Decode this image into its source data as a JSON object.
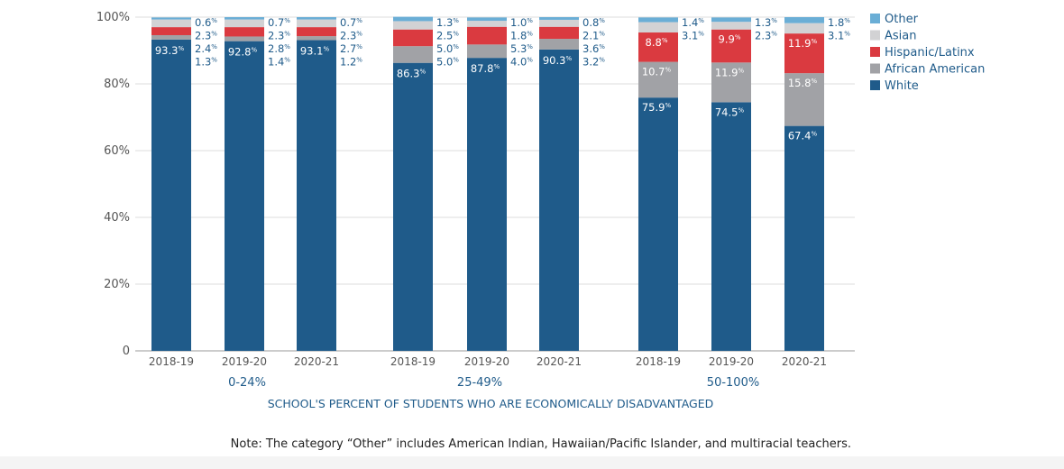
{
  "chart_data": {
    "type": "stacked-bar",
    "y_ticks": [
      "100%",
      "80%",
      "60%",
      "40%",
      "20%",
      "0"
    ],
    "ylim": [
      0,
      100
    ],
    "grid": true,
    "xlabel": "SCHOOL'S PERCENT OF STUDENTS WHO ARE ECONOMICALLY DISADVANTAGED",
    "legend_position": "top-right",
    "note": "Note: The category “Other” includes American Indian, Hawaiian/Pacific Islander, and multiracial teachers.",
    "series_order": [
      "White",
      "African American",
      "Hispanic/Latinx",
      "Asian",
      "Other"
    ],
    "legend": [
      {
        "name": "Other",
        "color": "#6aaed6"
      },
      {
        "name": "Asian",
        "color": "#d2d2d4"
      },
      {
        "name": "Hispanic/Latinx",
        "color": "#da3a40"
      },
      {
        "name": "African American",
        "color": "#a1a2a6"
      },
      {
        "name": "White",
        "color": "#1f5b8a"
      }
    ],
    "groups": [
      {
        "name": "0-24%",
        "bars": [
          {
            "year": "2018-19",
            "values": {
              "White": 93.3,
              "African American": 1.3,
              "Hispanic/Latinx": 2.4,
              "Asian": 2.3,
              "Other": 0.6
            }
          },
          {
            "year": "2019-20",
            "values": {
              "White": 92.8,
              "African American": 1.4,
              "Hispanic/Latinx": 2.8,
              "Asian": 2.3,
              "Other": 0.7
            }
          },
          {
            "year": "2020-21",
            "values": {
              "White": 93.1,
              "African American": 1.2,
              "Hispanic/Latinx": 2.7,
              "Asian": 2.3,
              "Other": 0.7
            }
          }
        ]
      },
      {
        "name": "25-49%",
        "bars": [
          {
            "year": "2018-19",
            "values": {
              "White": 86.3,
              "African American": 5.0,
              "Hispanic/Latinx": 5.0,
              "Asian": 2.5,
              "Other": 1.3
            }
          },
          {
            "year": "2019-20",
            "values": {
              "White": 87.8,
              "African American": 4.0,
              "Hispanic/Latinx": 5.3,
              "Asian": 1.8,
              "Other": 1.0
            }
          },
          {
            "year": "2020-21",
            "values": {
              "White": 90.3,
              "African American": 3.2,
              "Hispanic/Latinx": 3.6,
              "Asian": 2.1,
              "Other": 0.8
            }
          }
        ]
      },
      {
        "name": "50-100%",
        "bars": [
          {
            "year": "2018-19",
            "values": {
              "White": 75.9,
              "African American": 10.7,
              "Hispanic/Latinx": 8.8,
              "Asian": 3.1,
              "Other": 1.4
            }
          },
          {
            "year": "2019-20",
            "values": {
              "White": 74.5,
              "African American": 11.9,
              "Hispanic/Latinx": 9.9,
              "Asian": 2.3,
              "Other": 1.3
            }
          },
          {
            "year": "2020-21",
            "values": {
              "White": 67.4,
              "African American": 15.8,
              "Hispanic/Latinx": 11.9,
              "Asian": 3.1,
              "Other": 1.8
            }
          }
        ]
      }
    ]
  }
}
